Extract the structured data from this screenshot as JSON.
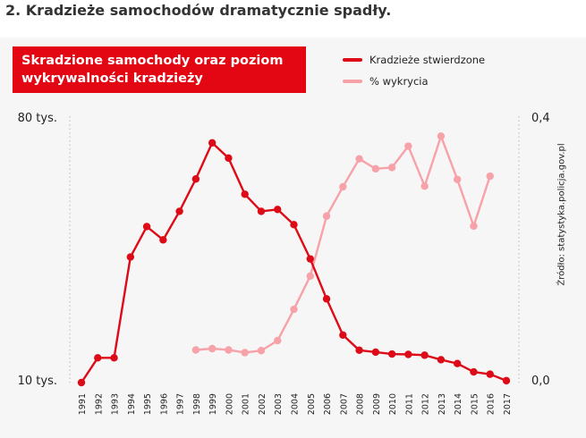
{
  "heading": "2. Kradzieże samochodów dramatycznie spadły.",
  "chart_title_lines": [
    "Skradzione samochody oraz poziom",
    "wykrywalności kradzieży"
  ],
  "source": "Źródło: statystyka.policja.gov.pl",
  "colors": {
    "accent": "#e30613",
    "stolen": "#dd0b17",
    "detection": "#f7a1a8",
    "panel": "#f6f6f6",
    "grid": "#cccccc"
  },
  "chart_data": {
    "type": "line",
    "title": "Skradzione samochody oraz poziom wykrywalności kradzieży",
    "categories": [
      "1991",
      "1992",
      "1993",
      "1994",
      "1995",
      "1996",
      "1997",
      "1998",
      "1999",
      "2000",
      "2001",
      "2002",
      "2003",
      "2004",
      "2005",
      "2006",
      "2007",
      "2008",
      "2009",
      "2010",
      "2011",
      "2012",
      "2013",
      "2014",
      "2015",
      "2016",
      "2017"
    ],
    "left_axis": {
      "ticks": [
        "80 tys.",
        "10 tys."
      ],
      "range": [
        10000,
        80000
      ]
    },
    "right_axis": {
      "ticks": [
        "0,4",
        "0,0"
      ],
      "range": [
        0.0,
        0.4
      ]
    },
    "legend_position": "top-right",
    "series": [
      {
        "name": "Kradzieże stwierdzone",
        "axis": "left",
        "values": [
          10000,
          16500,
          16500,
          43000,
          51000,
          47500,
          55000,
          63500,
          73000,
          69000,
          59500,
          55000,
          55500,
          51500,
          42500,
          32000,
          22500,
          18500,
          18000,
          17500,
          17400,
          17200,
          16000,
          15000,
          12800,
          12200,
          10500
        ]
      },
      {
        "name": "% wykrycia",
        "axis": "right",
        "values": [
          null,
          null,
          null,
          null,
          null,
          null,
          null,
          0.049,
          0.051,
          0.049,
          0.045,
          0.048,
          0.063,
          0.11,
          0.16,
          0.25,
          0.294,
          0.336,
          0.321,
          0.323,
          0.355,
          0.295,
          0.37,
          0.305,
          0.235,
          0.31,
          null
        ]
      }
    ]
  }
}
